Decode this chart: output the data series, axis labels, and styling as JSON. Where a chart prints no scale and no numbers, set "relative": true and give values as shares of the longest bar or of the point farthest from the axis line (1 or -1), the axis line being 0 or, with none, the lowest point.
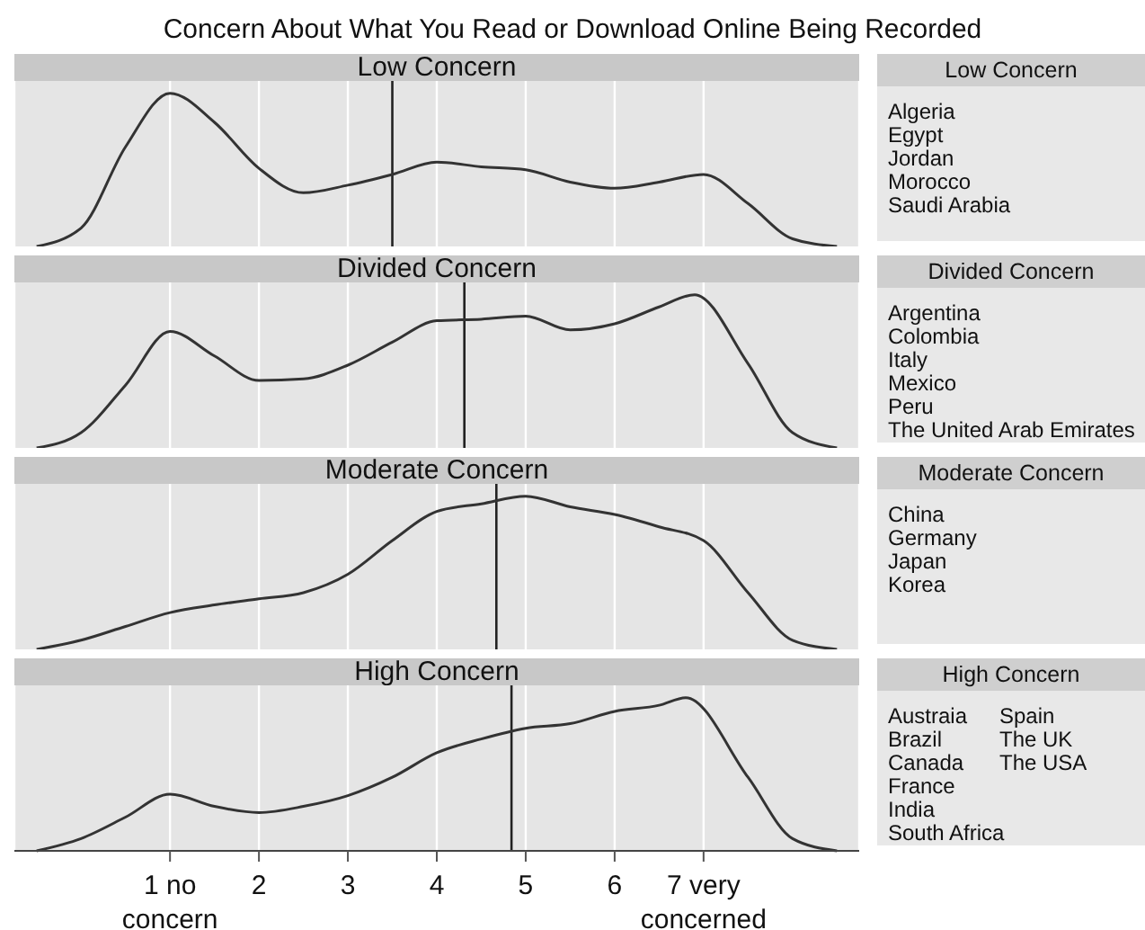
{
  "chart_data": [
    {
      "type": "other",
      "title": "Concern About What You Read or Download Online Being Recorded"
    },
    {
      "type": "line",
      "title": "Low Concern",
      "relative": true,
      "color": "#333333",
      "grid": "x",
      "tick_labels": false,
      "xlim": [
        -0.75,
        8.75
      ],
      "xticks": [
        1,
        2,
        3,
        4,
        5,
        6,
        7
      ],
      "ref_lines": [
        {
          "axis": "x",
          "value": 3.5,
          "color": "#222222"
        }
      ],
      "x": [
        -0.5,
        0,
        0.5,
        1,
        1.5,
        2,
        2.5,
        3,
        3.5,
        4,
        4.5,
        5,
        5.5,
        6,
        6.5,
        7,
        7.5,
        8,
        8.5
      ],
      "values": [
        0,
        0.12,
        0.65,
        1,
        0.81,
        0.51,
        0.35,
        0.4,
        0.47,
        0.55,
        0.52,
        0.5,
        0.42,
        0.38,
        0.42,
        0.47,
        0.28,
        0.05,
        0
      ]
    },
    {
      "type": "other",
      "title": "Low Concern",
      "annotations": [
        "Algeria",
        "Egypt",
        "Jordan",
        "Morocco",
        "Saudi Arabia"
      ]
    },
    {
      "type": "line",
      "title": "Divided Concern",
      "relative": true,
      "color": "#333333",
      "grid": "x",
      "tick_labels": false,
      "xlim": [
        -0.75,
        8.75
      ],
      "xticks": [
        1,
        2,
        3,
        4,
        5,
        6,
        7
      ],
      "ref_lines": [
        {
          "axis": "x",
          "value": 4.31,
          "color": "#222222"
        }
      ],
      "x": [
        -0.5,
        0,
        0.5,
        1,
        1.5,
        2,
        2.5,
        3,
        3.5,
        4,
        4.5,
        5,
        5.5,
        6,
        6.5,
        6.9,
        7.5,
        8,
        8.5
      ],
      "values": [
        0,
        0.1,
        0.41,
        0.76,
        0.6,
        0.44,
        0.45,
        0.54,
        0.69,
        0.83,
        0.84,
        0.86,
        0.77,
        0.81,
        0.92,
        1,
        0.55,
        0.1,
        0
      ]
    },
    {
      "type": "other",
      "title": "Divided Concern",
      "annotations": [
        "Argentina",
        "Colombia",
        "Italy",
        "Mexico",
        "Peru",
        "The United Arab Emirates"
      ]
    },
    {
      "type": "line",
      "title": "Moderate Concern",
      "relative": true,
      "color": "#333333",
      "grid": "x",
      "tick_labels": false,
      "xlim": [
        -0.75,
        8.75
      ],
      "xticks": [
        1,
        2,
        3,
        4,
        5,
        6,
        7
      ],
      "ref_lines": [
        {
          "axis": "x",
          "value": 4.67,
          "color": "#222222"
        }
      ],
      "x": [
        -0.5,
        0,
        0.5,
        1,
        1.5,
        2,
        2.5,
        3,
        3.5,
        4,
        4.5,
        5,
        5.5,
        6,
        6.5,
        7,
        7.5,
        8,
        8.5
      ],
      "values": [
        0,
        0.06,
        0.15,
        0.24,
        0.29,
        0.33,
        0.37,
        0.49,
        0.71,
        0.9,
        0.95,
        1,
        0.93,
        0.88,
        0.8,
        0.71,
        0.37,
        0.06,
        0
      ]
    },
    {
      "type": "other",
      "title": "Moderate Concern",
      "annotations": [
        "China",
        "Germany",
        "Japan",
        "Korea"
      ]
    },
    {
      "type": "line",
      "title": "High Concern",
      "relative": true,
      "color": "#333333",
      "grid": "x",
      "tick_labels": "x",
      "xlim": [
        -0.75,
        8.75
      ],
      "xticks": [
        {
          "value": 1,
          "label": "1 no concern"
        },
        2,
        3,
        4,
        5,
        6,
        {
          "value": 7,
          "label": "7 very concerned"
        }
      ],
      "ref_lines": [
        {
          "axis": "x",
          "value": 4.84,
          "color": "#222222"
        }
      ],
      "x": [
        -0.5,
        0,
        0.5,
        1,
        1.5,
        2,
        2.5,
        3,
        3.5,
        4,
        4.5,
        5,
        5.5,
        6,
        6.5,
        6.8,
        7.5,
        8,
        8.5
      ],
      "values": [
        0,
        0.08,
        0.22,
        0.37,
        0.29,
        0.25,
        0.29,
        0.36,
        0.48,
        0.64,
        0.73,
        0.8,
        0.83,
        0.91,
        0.95,
        1,
        0.48,
        0.08,
        0
      ]
    },
    {
      "type": "other",
      "title": "High Concern",
      "annotations": [
        "Austraia",
        "Brazil",
        "Canada",
        "France",
        "India",
        "South Africa",
        "Spain",
        "The UK",
        "The USA"
      ]
    }
  ]
}
